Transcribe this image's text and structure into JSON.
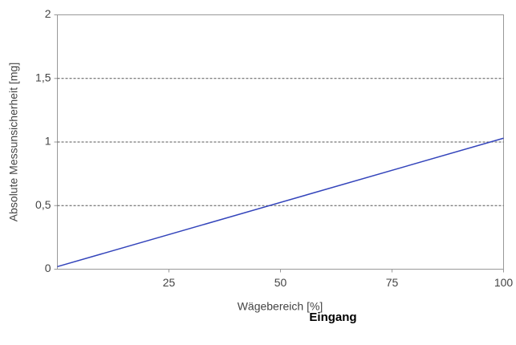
{
  "chart_data": {
    "type": "line",
    "x": [
      0,
      100
    ],
    "values": [
      0.02,
      1.03
    ],
    "color": "#3344bb",
    "xlabel": "Wägebereich [%]",
    "ylabel": "Absolute Messunsicherheit [mg]",
    "annotation": "Eingang",
    "xlim": [
      0,
      100
    ],
    "xticks": [
      25,
      50,
      75,
      100
    ],
    "ylim": [
      0,
      2
    ],
    "yticks": [
      0,
      {
        "value": 0.5,
        "label": "0,5"
      },
      1,
      {
        "value": 1.5,
        "label": "1,5"
      },
      2
    ],
    "grid": true
  }
}
